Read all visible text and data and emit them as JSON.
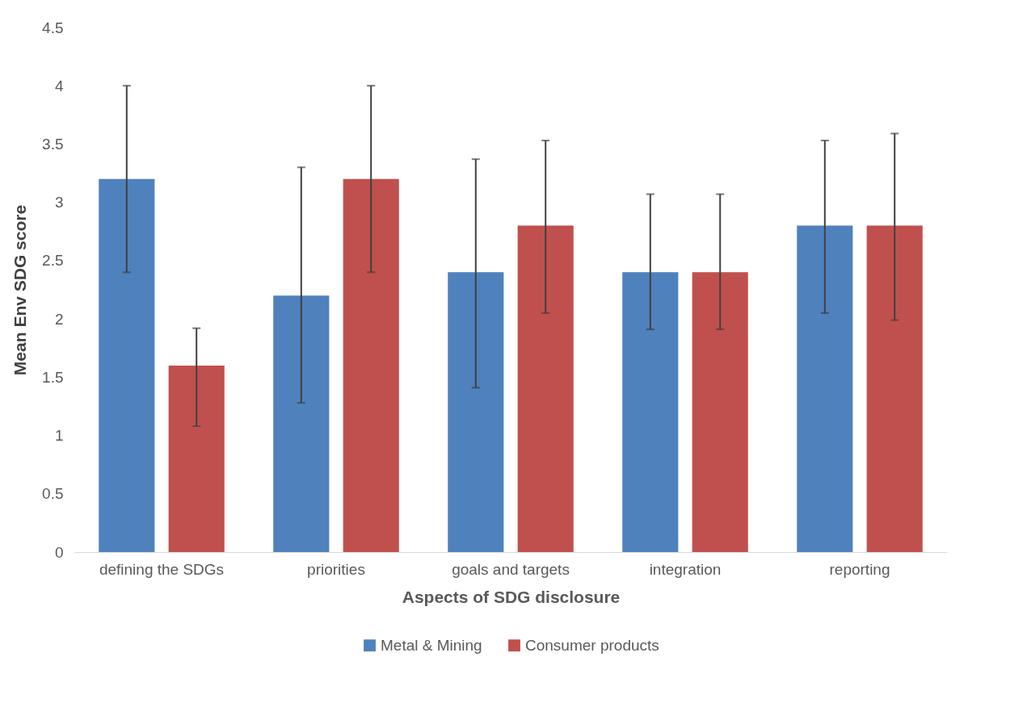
{
  "chart_data": {
    "type": "bar",
    "xlabel": "Aspects of SDG disclosure",
    "ylabel": "Mean Env SDG score",
    "categories": [
      "defining the SDGs",
      "priorities",
      "goals and targets",
      "integration",
      "reporting"
    ],
    "series": [
      {
        "name": "Metal & Mining",
        "color": "#4f81bd",
        "values": [
          3.2,
          2.2,
          2.4,
          2.4,
          2.8
        ],
        "errors": [
          [
            2.4,
            4.0
          ],
          [
            1.28,
            3.3
          ],
          [
            1.41,
            3.37
          ],
          [
            1.91,
            3.07
          ],
          [
            2.05,
            3.53
          ]
        ]
      },
      {
        "name": "Consumer products",
        "color": "#c0504d",
        "values": [
          1.6,
          3.2,
          2.8,
          2.4,
          2.8
        ],
        "errors": [
          [
            1.08,
            1.92
          ],
          [
            2.4,
            4.0
          ],
          [
            2.05,
            3.53
          ],
          [
            1.91,
            3.07
          ],
          [
            1.99,
            3.59
          ]
        ]
      }
    ],
    "ylim": [
      0,
      4.5
    ],
    "yticks": [
      0,
      0.5,
      1,
      1.5,
      2,
      2.5,
      3,
      3.5,
      4,
      4.5
    ],
    "grid": false,
    "legend": "bottom"
  }
}
